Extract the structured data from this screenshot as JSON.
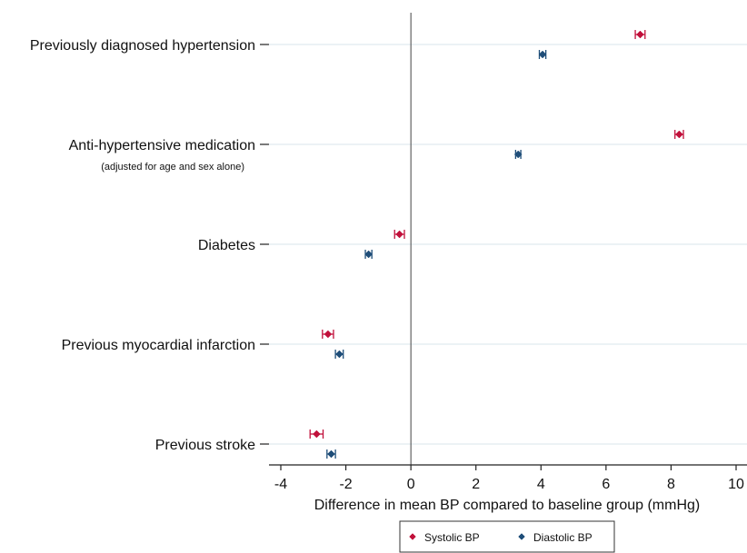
{
  "chart_data": {
    "type": "scatter",
    "title": "",
    "xlabel": "Difference in mean BP compared to baseline group (mmHg)",
    "ylabel": "",
    "xlim": [
      -4.4,
      10.4
    ],
    "xticks": [
      -4,
      -2,
      0,
      2,
      4,
      6,
      8,
      10
    ],
    "xtick_labels": [
      "-4",
      "-2",
      "0",
      "2",
      "4",
      "6",
      "8",
      "10"
    ],
    "reference_line_x": 0,
    "grid": true,
    "legend_position": "bottom",
    "colors": {
      "systolic": "#c1103b",
      "diastolic": "#1f4e79",
      "grid": "#e6edf2",
      "axis": "#222222"
    },
    "categories": [
      {
        "label": "Previously diagnosed hypertension",
        "sublabel": ""
      },
      {
        "label": "Anti-hypertensive medication",
        "sublabel": "(adjusted for age and sex alone)"
      },
      {
        "label": "Diabetes",
        "sublabel": ""
      },
      {
        "label": "Previous myocardial infarction",
        "sublabel": ""
      },
      {
        "label": "Previous stroke",
        "sublabel": ""
      }
    ],
    "series": [
      {
        "name": "Systolic BP",
        "marker": "diamond",
        "color": "#c1103b",
        "values": [
          7.05,
          8.25,
          -0.35,
          -2.55,
          -2.9
        ],
        "ci_low": [
          6.9,
          8.12,
          -0.5,
          -2.72,
          -3.1
        ],
        "ci_high": [
          7.2,
          8.38,
          -0.2,
          -2.38,
          -2.7
        ]
      },
      {
        "name": "Diastolic BP",
        "marker": "diamond",
        "color": "#1f4e79",
        "values": [
          4.05,
          3.3,
          -1.3,
          -2.2,
          -2.45
        ],
        "ci_low": [
          3.95,
          3.22,
          -1.4,
          -2.32,
          -2.58
        ],
        "ci_high": [
          4.15,
          3.38,
          -1.2,
          -2.08,
          -2.32
        ]
      }
    ]
  }
}
